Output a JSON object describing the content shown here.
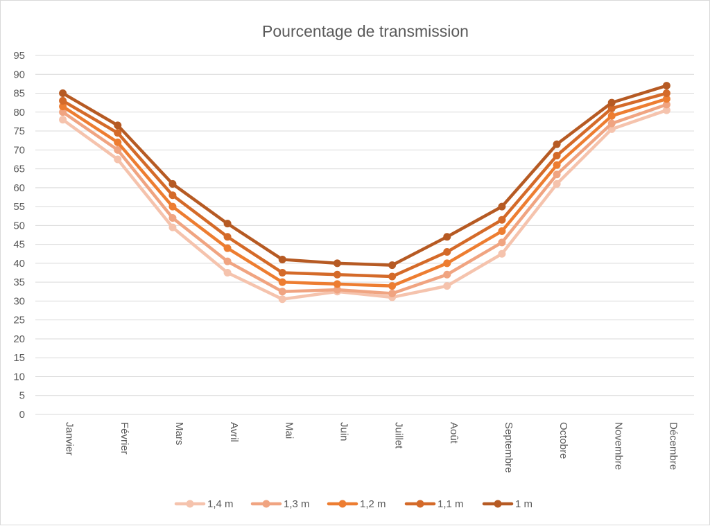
{
  "chart_data": {
    "type": "line",
    "title": "Pourcentage de transmission",
    "categories": [
      "Janvier",
      "Février",
      "Mars",
      "Avril",
      "Mai",
      "Juin",
      "Juillet",
      "Août",
      "Septembre",
      "Octobre",
      "Novembre",
      "Décembre"
    ],
    "ylim": [
      0,
      95
    ],
    "ytick_step": 5,
    "grid": true,
    "legend_position": "bottom",
    "series": [
      {
        "name": "1,4 m",
        "color": "#f5c3ad",
        "values": [
          78,
          67.5,
          49.5,
          37.5,
          30.5,
          32.5,
          31,
          34,
          42.5,
          61,
          75.5,
          80.5
        ]
      },
      {
        "name": "1,3 m",
        "color": "#f0a481",
        "values": [
          80,
          70,
          52,
          40.5,
          32.5,
          33,
          32,
          37,
          45.5,
          63.5,
          77,
          82
        ]
      },
      {
        "name": "1,2 m",
        "color": "#ed7d31",
        "values": [
          81.5,
          72,
          55,
          44,
          35,
          34.5,
          34,
          40,
          48.5,
          66,
          79,
          83.5
        ]
      },
      {
        "name": "1,1 m",
        "color": "#d46a29",
        "values": [
          83,
          74.5,
          58,
          47,
          37.5,
          37,
          36.5,
          43,
          51.5,
          68.5,
          81,
          85
        ]
      },
      {
        "name": "1 m",
        "color": "#b65a23",
        "values": [
          85,
          76.5,
          61,
          50.5,
          41,
          40,
          39.5,
          47,
          55,
          71.5,
          82.5,
          87
        ]
      }
    ]
  }
}
